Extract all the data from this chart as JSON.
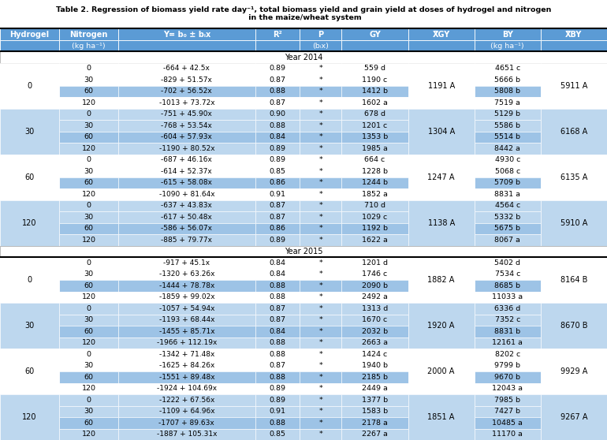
{
  "title_line1": "Table 2. Regression of biomass yield rate day⁻¹, total biomass yield and grain yield at doses of hydrogel and nitrogen",
  "title_line2": " in the maize/wheat system",
  "header_row1": [
    "Hydrogel",
    "Nitrogen",
    "Y= b₀ ± bᵢx",
    "R²",
    "P",
    "GY",
    "X̅GY",
    "BY",
    "X̅BY"
  ],
  "header_row2": [
    "",
    "(kg ha⁻¹)",
    "",
    "",
    "(bᵢx)",
    "",
    "",
    "(kg ha⁻¹)",
    ""
  ],
  "header_color": "#5B9BD5",
  "color_white": "#FFFFFF",
  "color_light_blue": "#BDD7EE",
  "color_mid_blue": "#9DC3E6",
  "rows_2014": [
    [
      0,
      0,
      "-664 + 42.5x",
      "0.89",
      "*",
      "559 d",
      "1191 A",
      "4651 c",
      "5911 A"
    ],
    [
      0,
      30,
      "-829 + 51.57x",
      "0.87",
      "*",
      "1190 c",
      "1191 A",
      "5666 b",
      "5911 A"
    ],
    [
      0,
      60,
      "-702 + 56.52x",
      "0.88",
      "*",
      "1412 b",
      "1191 A",
      "5808 b",
      "5911 A"
    ],
    [
      0,
      120,
      "-1013 + 73.72x",
      "0.87",
      "*",
      "1602 a",
      "1191 A",
      "7519 a",
      "5911 A"
    ],
    [
      30,
      0,
      "-751 + 45.90x",
      "0.90",
      "*",
      "678 d",
      "1304 A",
      "5129 b",
      "6168 A"
    ],
    [
      30,
      30,
      "-768 + 53.54x",
      "0.88",
      "*",
      "1201 c",
      "1304 A",
      "5586 b",
      "6168 A"
    ],
    [
      30,
      60,
      "-604 + 57.93x",
      "0.84",
      "*",
      "1353 b",
      "1304 A",
      "5514 b",
      "6168 A"
    ],
    [
      30,
      120,
      "-1190 + 80.52x",
      "0.89",
      "*",
      "1985 a",
      "1304 A",
      "8442 a",
      "6168 A"
    ],
    [
      60,
      0,
      "-687 + 46.16x",
      "0.89",
      "*",
      "664 c",
      "1247 A",
      "4930 c",
      "6135 A"
    ],
    [
      60,
      30,
      "-614 + 52.37x",
      "0.85",
      "*",
      "1228 b",
      "1247 A",
      "5068 c",
      "6135 A"
    ],
    [
      60,
      60,
      "-615 + 58.08x",
      "0.86",
      "*",
      "1244 b",
      "1247 A",
      "5709 b",
      "6135 A"
    ],
    [
      60,
      120,
      "-1090 + 81.64x",
      "0.91",
      "*",
      "1852 a",
      "1247 A",
      "8831 a",
      "6135 A"
    ],
    [
      120,
      0,
      "-637 + 43.83x",
      "0.87",
      "*",
      "710 d",
      "1138 A",
      "4564 c",
      "5910 A"
    ],
    [
      120,
      30,
      "-617 + 50.48x",
      "0.87",
      "*",
      "1029 c",
      "1138 A",
      "5332 b",
      "5910 A"
    ],
    [
      120,
      60,
      "-586 + 56.07x",
      "0.86",
      "*",
      "1192 b",
      "1138 A",
      "5675 b",
      "5910 A"
    ],
    [
      120,
      120,
      "-885 + 79.77x",
      "0.89",
      "*",
      "1622 a",
      "1138 A",
      "8067 a",
      "5910 A"
    ]
  ],
  "rows_2015": [
    [
      0,
      0,
      "-917 + 45.1x",
      "0.84",
      "*",
      "1201 d",
      "1882 A",
      "5402 d",
      "8164 B"
    ],
    [
      0,
      30,
      "-1320 + 63.26x",
      "0.84",
      "*",
      "1746 c",
      "1882 A",
      "7534 c",
      "8164 B"
    ],
    [
      0,
      60,
      "-1444 + 78.78x",
      "0.88",
      "*",
      "2090 b",
      "1882 A",
      "8685 b",
      "8164 B"
    ],
    [
      0,
      120,
      "-1859 + 99.02x",
      "0.88",
      "*",
      "2492 a",
      "1882 A",
      "11033 a",
      "8164 B"
    ],
    [
      30,
      0,
      "-1057 + 54.94x",
      "0.87",
      "*",
      "1313 d",
      "1920 A",
      "6336 d",
      "8670 B"
    ],
    [
      30,
      30,
      "-1193 + 68.44x",
      "0.87",
      "*",
      "1670 c",
      "1920 A",
      "7352 c",
      "8670 B"
    ],
    [
      30,
      60,
      "-1455 + 85.71x",
      "0.84",
      "*",
      "2032 b",
      "1920 A",
      "8831 b",
      "8670 B"
    ],
    [
      30,
      120,
      "-1966 + 112.19x",
      "0.88",
      "*",
      "2663 a",
      "1920 A",
      "12161 a",
      "8670 B"
    ],
    [
      60,
      0,
      "-1342 + 71.48x",
      "0.88",
      "*",
      "1424 c",
      "2000 A",
      "8202 c",
      "9929 A"
    ],
    [
      60,
      30,
      "-1625 + 84.26x",
      "0.87",
      "*",
      "1940 b",
      "2000 A",
      "9799 b",
      "9929 A"
    ],
    [
      60,
      60,
      "-1551 + 89.48x",
      "0.88",
      "*",
      "2185 b",
      "2000 A",
      "9670 b",
      "9929 A"
    ],
    [
      60,
      120,
      "-1924 + 104.69x",
      "0.89",
      "*",
      "2449 a",
      "2000 A",
      "12043 a",
      "9929 A"
    ],
    [
      120,
      0,
      "-1222 + 67.56x",
      "0.89",
      "*",
      "1377 b",
      "1851 A",
      "7985 b",
      "9267 A"
    ],
    [
      120,
      30,
      "-1109 + 64.96x",
      "0.91",
      "*",
      "1583 b",
      "1851 A",
      "7427 b",
      "9267 A"
    ],
    [
      120,
      60,
      "-1707 + 89.63x",
      "0.88",
      "*",
      "2178 a",
      "1851 A",
      "10485 a",
      "9267 A"
    ],
    [
      120,
      120,
      "-1887 + 105.31x",
      "0.85",
      "*",
      "2267 a",
      "1851 A",
      "11170 a",
      "9267 A"
    ]
  ]
}
